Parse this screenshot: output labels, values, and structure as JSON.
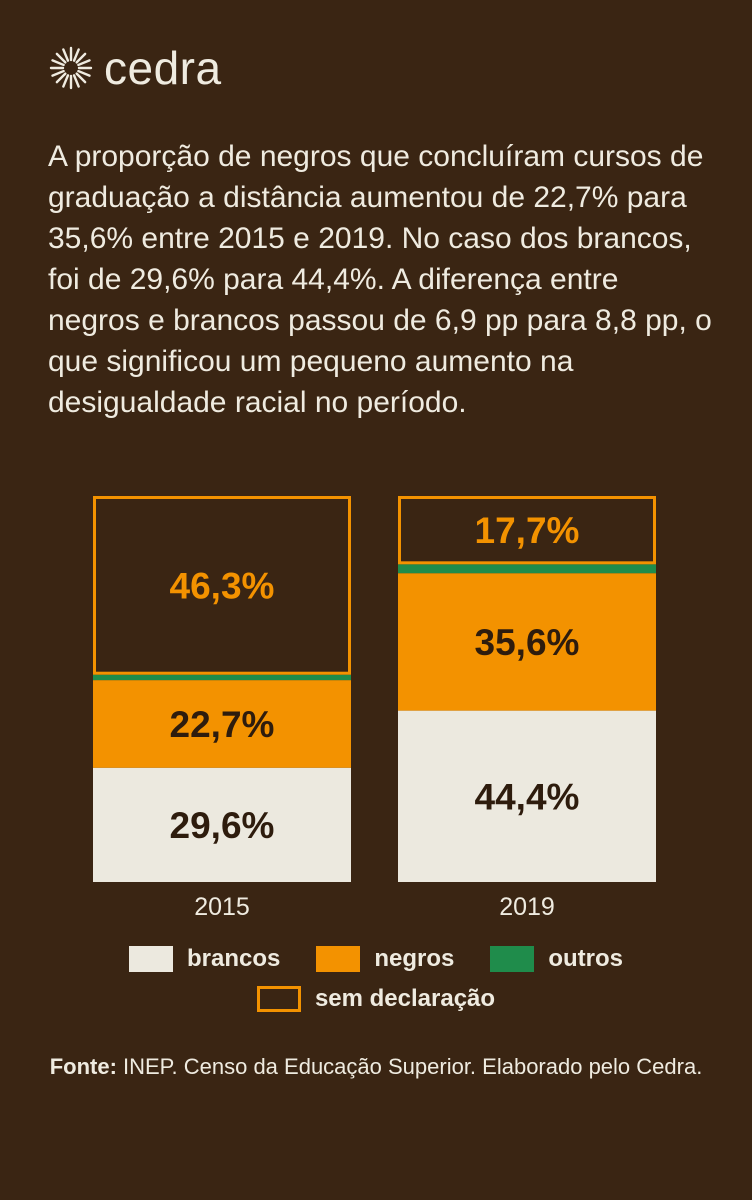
{
  "brand": {
    "name": "cedra",
    "icon": "sun-burst-icon"
  },
  "intro_text": "A proporção de negros que concluíram cursos de graduação a distância aumentou de 22,7% para 35,6% entre 2015 e 2019. No caso dos brancos, foi de 29,6% para 44,4%. A diferença entre negros e brancos passou de 6,9 pp para 8,8 pp, o que significou um pequeno aumento na desigualdade racial no período.",
  "colors": {
    "background": "#3a2513",
    "brancos": "#ece9df",
    "negros": "#f39200",
    "outros": "#1f8c4b",
    "sem_declaracao_border": "#f39200",
    "dark_text": "#2e1c0d",
    "orange_text": "#f39200"
  },
  "chart_data": {
    "type": "bar",
    "stacked": true,
    "categories": [
      "2015",
      "2019"
    ],
    "series": [
      {
        "key": "brancos",
        "name": "brancos",
        "values": [
          29.6,
          44.4
        ],
        "labels": [
          "29,6%",
          "44,4%"
        ]
      },
      {
        "key": "negros",
        "name": "negros",
        "values": [
          22.7,
          35.6
        ],
        "labels": [
          "22,7%",
          "35,6%"
        ]
      },
      {
        "key": "outros",
        "name": "outros",
        "values": [
          1.4,
          2.3
        ],
        "labels": [
          "",
          ""
        ]
      },
      {
        "key": "sem_declaracao",
        "name": "sem declaração",
        "values": [
          46.3,
          17.7
        ],
        "labels": [
          "46,3%",
          "17,7%"
        ]
      }
    ],
    "ylim": [
      0,
      100
    ],
    "legend": "bottom"
  },
  "legend": [
    {
      "key": "brancos",
      "label": "brancos"
    },
    {
      "key": "negros",
      "label": "negros"
    },
    {
      "key": "outros",
      "label": "outros"
    },
    {
      "key": "sem_declaracao",
      "label": "sem declaração"
    }
  ],
  "source": {
    "label": "Fonte:",
    "text": " INEP. Censo da Educação Superior. Elaborado pelo Cedra."
  }
}
